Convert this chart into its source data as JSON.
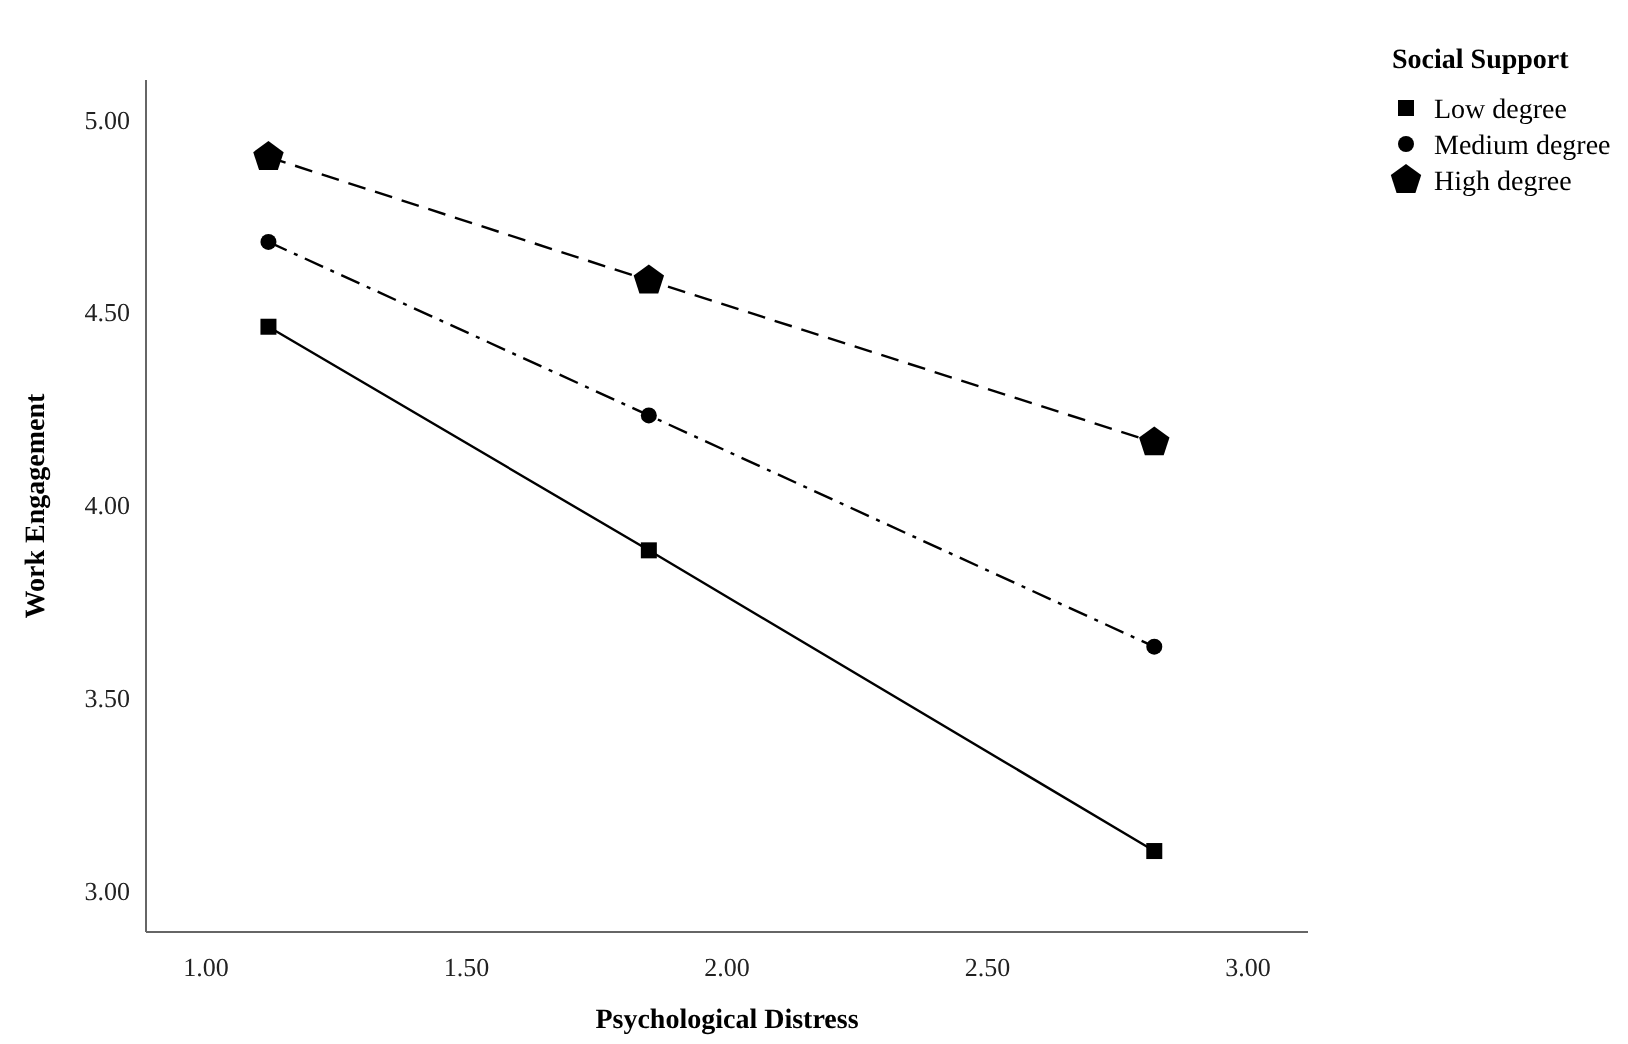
{
  "chart_data": {
    "type": "line",
    "xlabel": "Psychological Distress",
    "ylabel": "Work Engagement",
    "legend_title": "Social Support",
    "legend": "top right",
    "grid": false,
    "xlim": [
      0.885,
      3.115
    ],
    "xticks": [
      {
        "value": 1,
        "label": "1.00"
      },
      {
        "value": 1.5,
        "label": "1.50"
      },
      {
        "value": 2,
        "label": "2.00"
      },
      {
        "value": 2.5,
        "label": "2.50"
      },
      {
        "value": 3,
        "label": "3.00"
      }
    ],
    "ylim": [
      2.89,
      5.1
    ],
    "yticks": [
      {
        "value": 3,
        "label": "3.00"
      },
      {
        "value": 3.5,
        "label": "3.50"
      },
      {
        "value": 4,
        "label": "4.00"
      },
      {
        "value": 4.5,
        "label": "4.50"
      },
      {
        "value": 5,
        "label": "5.00"
      }
    ],
    "x": [
      1.12,
      1.85,
      2.82
    ],
    "series": [
      {
        "name": "Low degree",
        "color": "#000000",
        "values": [
          4.46,
          3.88,
          3.1
        ],
        "marker": "square",
        "line_style": "solid"
      },
      {
        "name": "Medium degree",
        "color": "#000000",
        "values": [
          4.68,
          4.23,
          3.63
        ],
        "marker": "circle",
        "line_style": "dashdot"
      },
      {
        "name": "High degree",
        "color": "#000000",
        "values": [
          4.9,
          4.58,
          4.16
        ],
        "marker": "star",
        "line_style": "dashed"
      }
    ]
  }
}
